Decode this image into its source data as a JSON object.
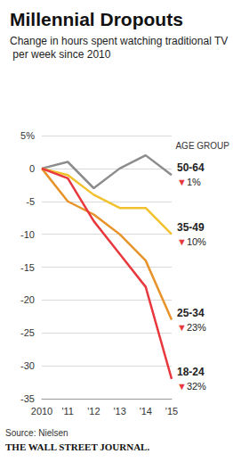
{
  "chart_data": {
    "type": "line",
    "title": "Millennial Dropouts",
    "subtitle": "Change in hours spent watching traditional TV per week since 2010",
    "legend_title": "AGE GROUP",
    "source": "Source: Nielsen",
    "credit": "THE WALL STREET JOURNAL.",
    "categories": [
      "2010",
      "'11",
      "'12",
      "'13",
      "'14",
      "'15"
    ],
    "series": [
      {
        "name": "50-64",
        "color": "#8c8c8c",
        "values": [
          0,
          1,
          -3,
          0,
          2,
          -1
        ],
        "annotation": "▼1%"
      },
      {
        "name": "35-49",
        "color": "#f2c12e",
        "values": [
          0,
          -1,
          -4,
          -6,
          -6,
          -10
        ],
        "annotation": "▼10%"
      },
      {
        "name": "25-34",
        "color": "#e8922a",
        "values": [
          0,
          -5,
          -7,
          -10,
          -14,
          -23
        ],
        "annotation": "▼23%"
      },
      {
        "name": "18-24",
        "color": "#e8383d",
        "values": [
          0,
          -1.5,
          -8,
          -13,
          -18,
          -32
        ],
        "annotation": "▼32%"
      }
    ],
    "ylim": [
      -35,
      5
    ],
    "yticks": [
      {
        "value": 5,
        "label": "5%"
      },
      0,
      -5,
      -10,
      -15,
      -20,
      -25,
      -30,
      -35
    ],
    "grid": true,
    "marker": "none"
  }
}
